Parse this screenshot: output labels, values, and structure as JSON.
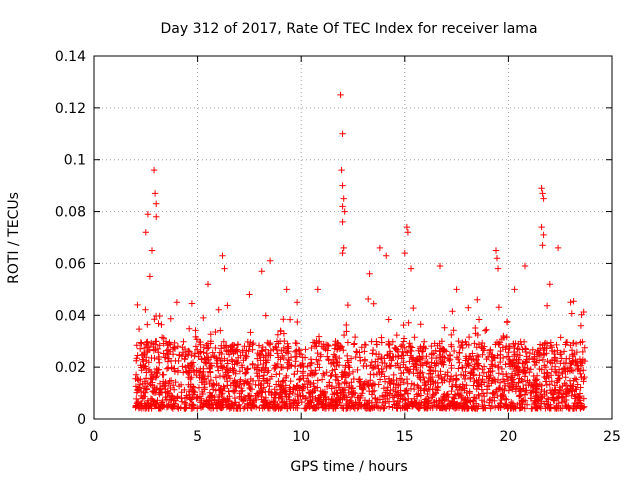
{
  "chart_data": {
    "type": "scatter",
    "title": "Day 312 of 2017, Rate Of TEC Index for receiver lama",
    "xlabel": "GPS time / hours",
    "ylabel": "ROTI / TECUs",
    "xlim": [
      0,
      25
    ],
    "ylim": [
      0,
      0.14
    ],
    "xticks": [
      0,
      5,
      10,
      15,
      20,
      25
    ],
    "yticks": [
      0,
      0.02,
      0.04,
      0.06,
      0.08,
      0.1,
      0.12,
      0.14
    ],
    "xtick_labels": [
      "0",
      "5",
      "10",
      "15",
      "20",
      "25"
    ],
    "ytick_labels": [
      "0",
      "0.02",
      "0.04",
      "0.06",
      "0.08",
      "0.1",
      "0.12",
      "0.14"
    ],
    "grid": true,
    "marker": "+",
    "series": [
      {
        "name": "ROTI",
        "color": "#ff0000",
        "data_range_hours": [
          2.0,
          23.7
        ],
        "baseline_range": [
          0.004,
          0.03
        ],
        "notable_points": [
          {
            "x": 2.1,
            "y": 0.044
          },
          {
            "x": 2.5,
            "y": 0.072
          },
          {
            "x": 2.6,
            "y": 0.079
          },
          {
            "x": 2.9,
            "y": 0.096
          },
          {
            "x": 2.95,
            "y": 0.087
          },
          {
            "x": 3.0,
            "y": 0.083
          },
          {
            "x": 3.0,
            "y": 0.078
          },
          {
            "x": 2.8,
            "y": 0.065
          },
          {
            "x": 2.7,
            "y": 0.055
          },
          {
            "x": 4.0,
            "y": 0.045
          },
          {
            "x": 5.5,
            "y": 0.052
          },
          {
            "x": 6.2,
            "y": 0.063
          },
          {
            "x": 6.3,
            "y": 0.058
          },
          {
            "x": 7.5,
            "y": 0.048
          },
          {
            "x": 8.1,
            "y": 0.057
          },
          {
            "x": 8.5,
            "y": 0.061
          },
          {
            "x": 9.3,
            "y": 0.05
          },
          {
            "x": 9.8,
            "y": 0.045
          },
          {
            "x": 10.8,
            "y": 0.05
          },
          {
            "x": 11.9,
            "y": 0.125
          },
          {
            "x": 12.0,
            "y": 0.11
          },
          {
            "x": 11.95,
            "y": 0.096
          },
          {
            "x": 12.0,
            "y": 0.09
          },
          {
            "x": 12.05,
            "y": 0.085
          },
          {
            "x": 12.0,
            "y": 0.082
          },
          {
            "x": 12.1,
            "y": 0.08
          },
          {
            "x": 12.0,
            "y": 0.076
          },
          {
            "x": 12.05,
            "y": 0.066
          },
          {
            "x": 12.0,
            "y": 0.064
          },
          {
            "x": 13.3,
            "y": 0.056
          },
          {
            "x": 13.8,
            "y": 0.066
          },
          {
            "x": 14.1,
            "y": 0.063
          },
          {
            "x": 15.1,
            "y": 0.074
          },
          {
            "x": 15.15,
            "y": 0.072
          },
          {
            "x": 15.0,
            "y": 0.064
          },
          {
            "x": 15.3,
            "y": 0.058
          },
          {
            "x": 16.7,
            "y": 0.059
          },
          {
            "x": 17.5,
            "y": 0.05
          },
          {
            "x": 18.5,
            "y": 0.046
          },
          {
            "x": 19.4,
            "y": 0.065
          },
          {
            "x": 19.45,
            "y": 0.062
          },
          {
            "x": 19.5,
            "y": 0.058
          },
          {
            "x": 20.3,
            "y": 0.05
          },
          {
            "x": 20.8,
            "y": 0.059
          },
          {
            "x": 21.6,
            "y": 0.089
          },
          {
            "x": 21.65,
            "y": 0.087
          },
          {
            "x": 21.7,
            "y": 0.085
          },
          {
            "x": 21.6,
            "y": 0.074
          },
          {
            "x": 21.7,
            "y": 0.071
          },
          {
            "x": 21.65,
            "y": 0.067
          },
          {
            "x": 22.4,
            "y": 0.066
          },
          {
            "x": 22.0,
            "y": 0.052
          },
          {
            "x": 23.0,
            "y": 0.045
          },
          {
            "x": 23.5,
            "y": 0.036
          }
        ]
      }
    ]
  }
}
